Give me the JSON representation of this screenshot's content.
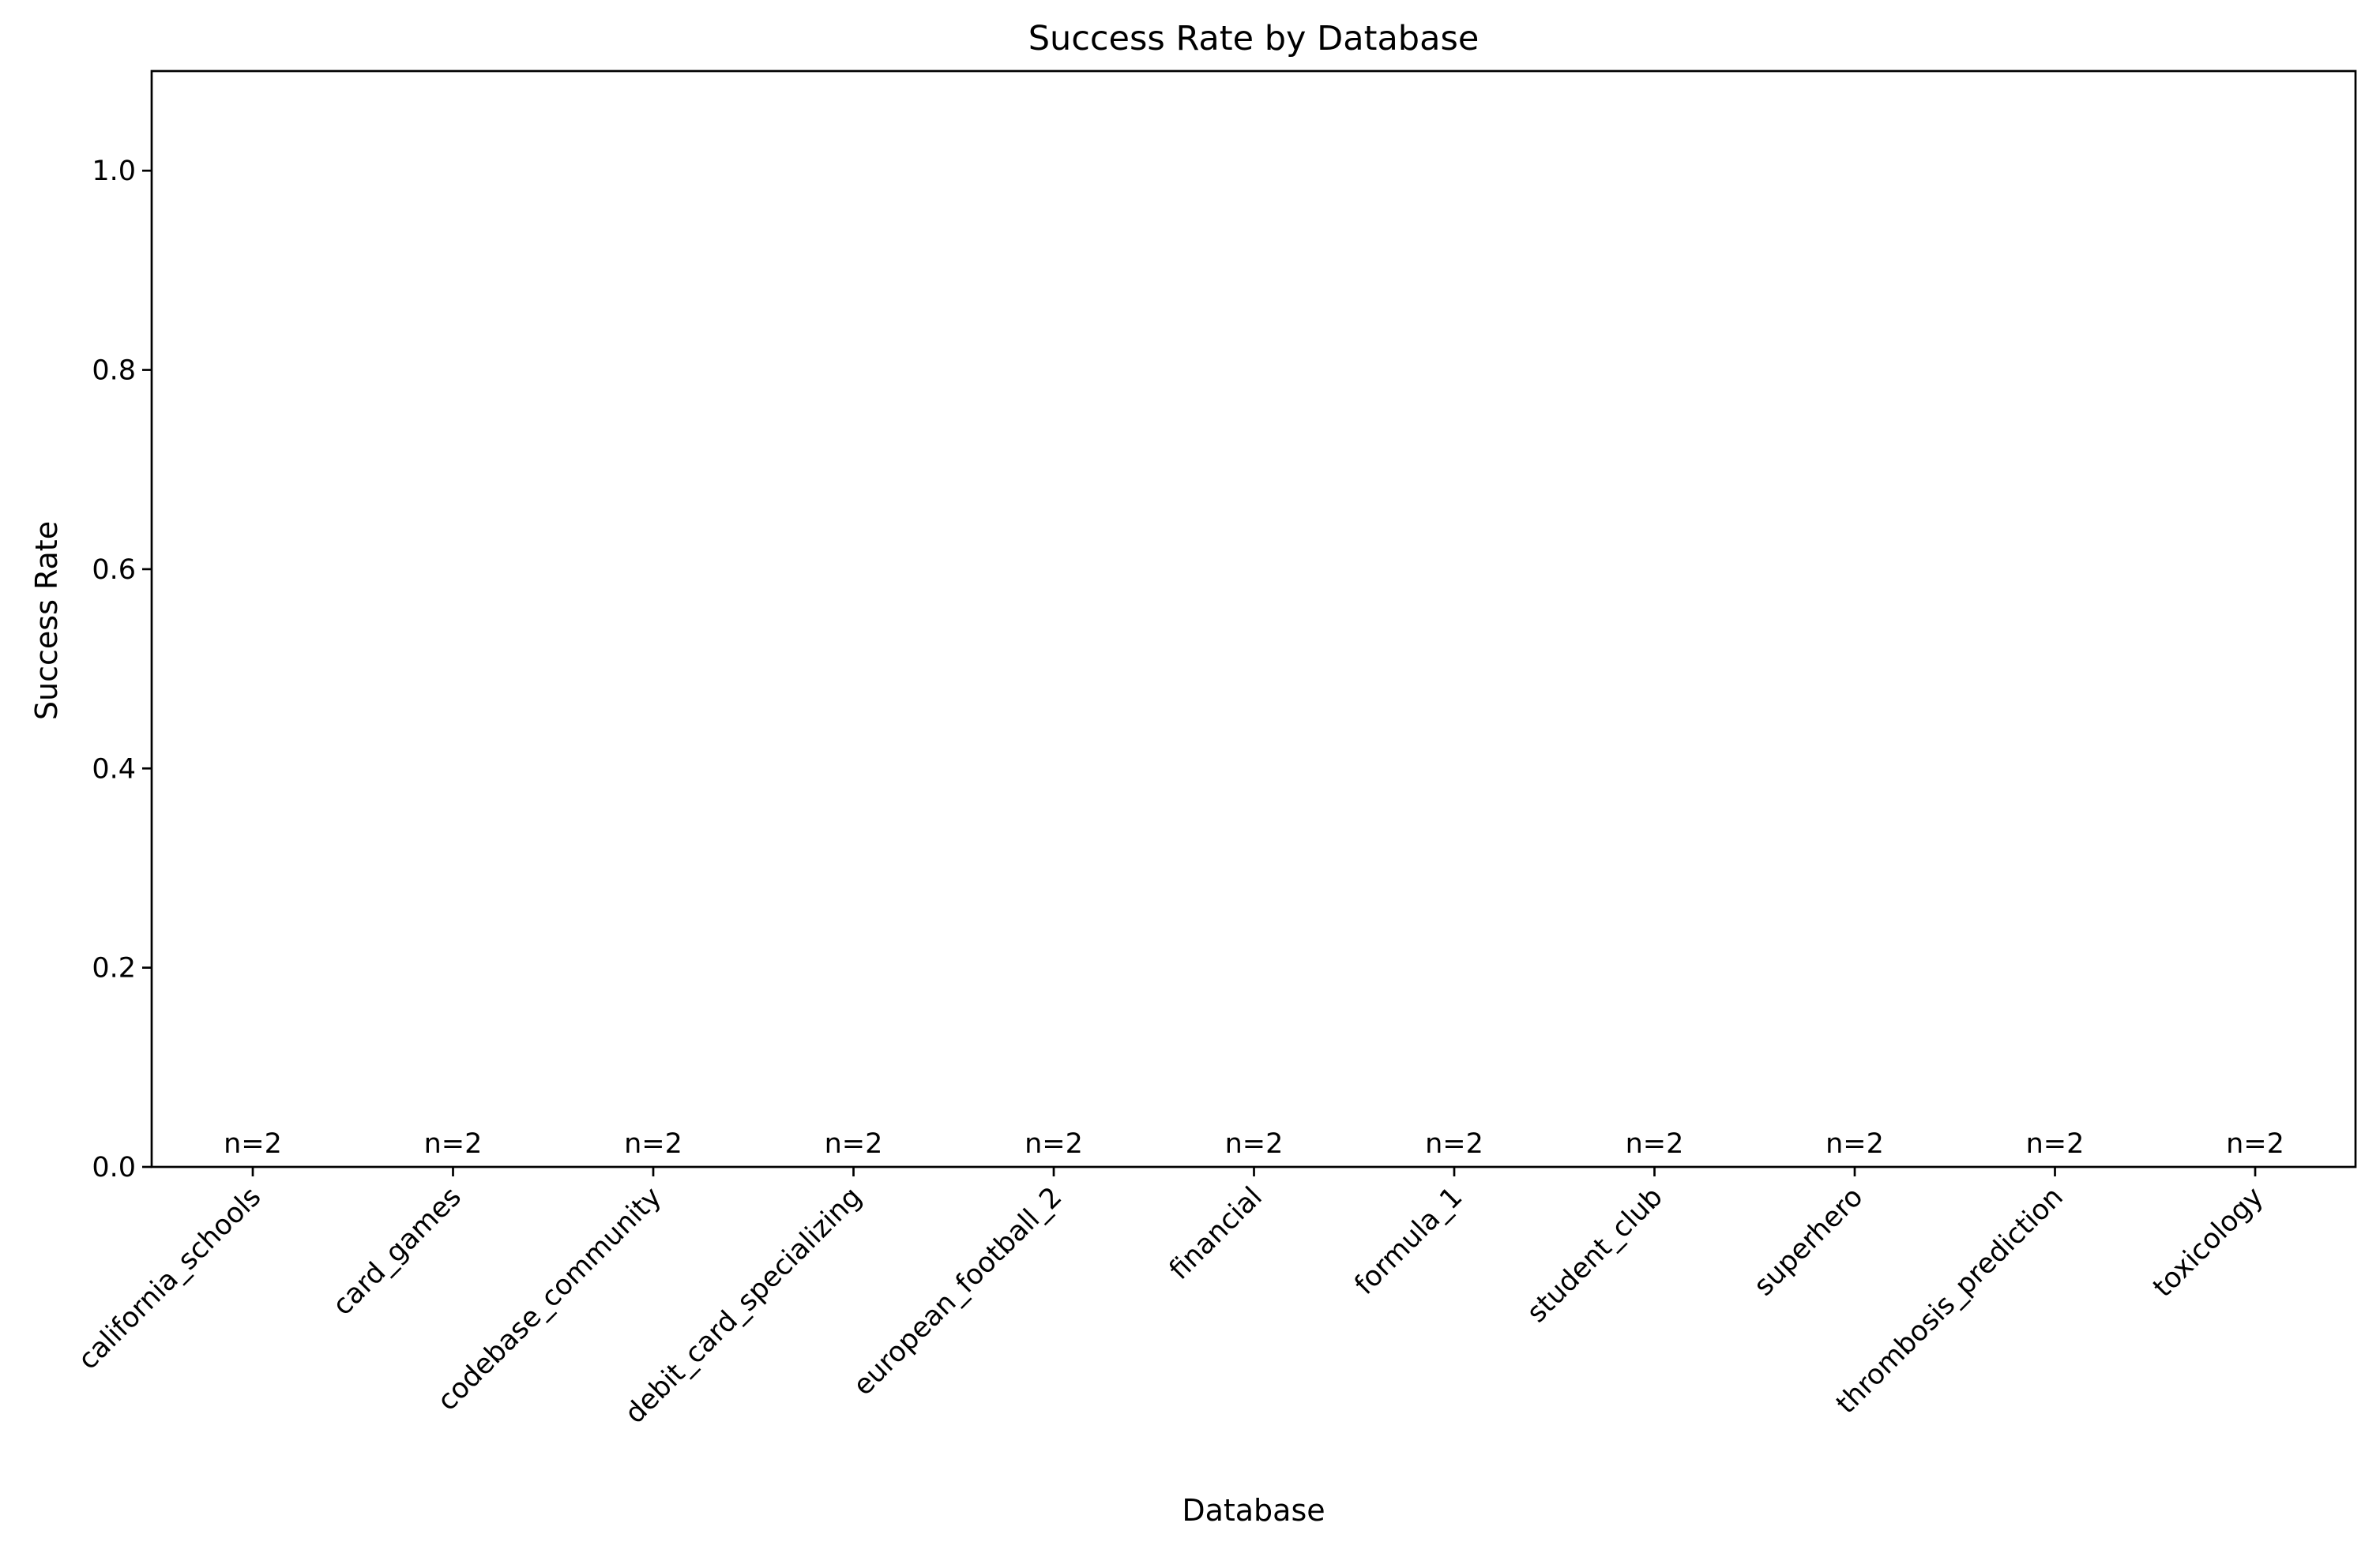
{
  "chart_data": {
    "type": "bar",
    "title": "Success Rate by Database",
    "xlabel": "Database",
    "ylabel": "Success Rate",
    "categories": [
      "california_schools",
      "card_games",
      "codebase_community",
      "debit_card_specializing",
      "european_football_2",
      "financial",
      "formula_1",
      "student_club",
      "superhero",
      "thrombosis_prediction",
      "toxicology"
    ],
    "values": [
      0,
      0,
      0,
      0,
      0,
      0,
      0,
      0,
      0,
      0,
      0
    ],
    "annotations": [
      "n=2",
      "n=2",
      "n=2",
      "n=2",
      "n=2",
      "n=2",
      "n=2",
      "n=2",
      "n=2",
      "n=2",
      "n=2"
    ],
    "ylim": [
      0,
      1.1
    ],
    "yticks": [
      0.0,
      0.2,
      0.4,
      0.6,
      0.8,
      1.0
    ],
    "ytick_labels": [
      "0.0",
      "0.2",
      "0.4",
      "0.6",
      "0.8",
      "1.0"
    ],
    "xtick_rotation_deg": 45,
    "grid": false,
    "legend": "none",
    "bar_color": "#1f77b4"
  }
}
